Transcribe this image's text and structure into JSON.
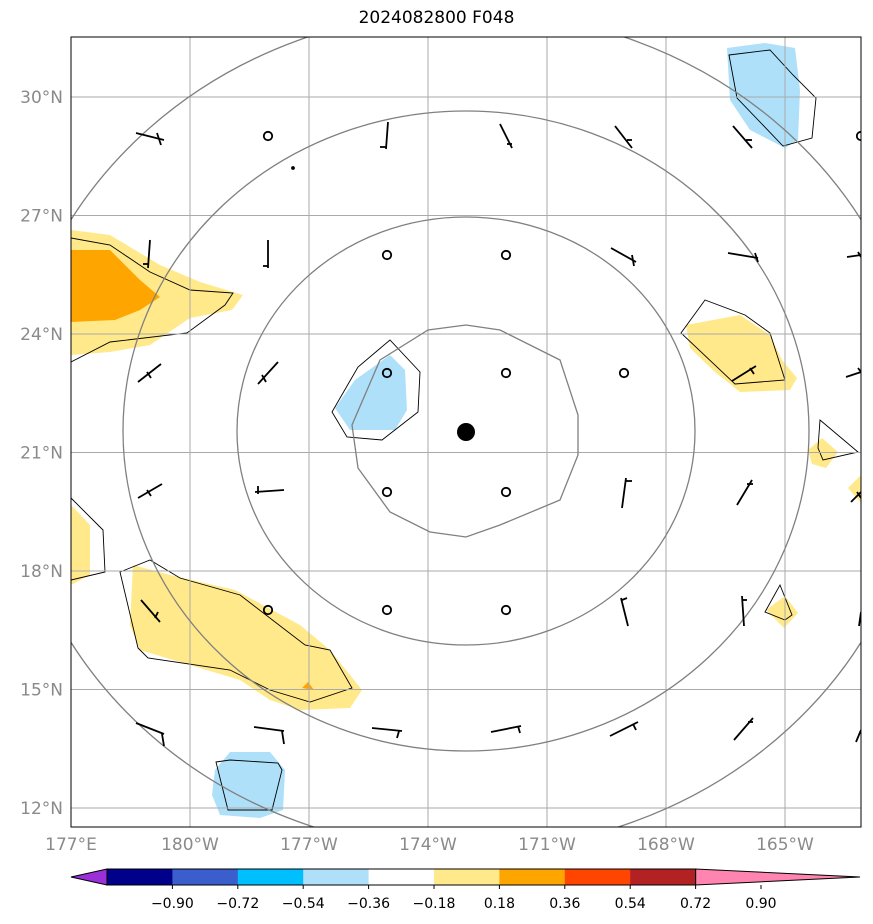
{
  "title": "2024082800 F048",
  "map": {
    "lon_range": [
      177,
      -163
    ],
    "lat_range": [
      11.5,
      31.5
    ],
    "lat_ticks": [
      {
        "value": 30,
        "label": "30°N"
      },
      {
        "value": 27,
        "label": "27°N"
      },
      {
        "value": 24,
        "label": "24°N"
      },
      {
        "value": 21,
        "label": "21°N"
      },
      {
        "value": 18,
        "label": "18°N"
      },
      {
        "value": 15,
        "label": "15°N"
      },
      {
        "value": 12,
        "label": "12°N"
      }
    ],
    "lon_ticks": [
      {
        "value": 177,
        "label": "177°E"
      },
      {
        "value": -180,
        "label": "180°W"
      },
      {
        "value": -177,
        "label": "177°W"
      },
      {
        "value": -174,
        "label": "174°W"
      },
      {
        "value": -171,
        "label": "171°W"
      },
      {
        "value": -168,
        "label": "168°W"
      },
      {
        "value": -165,
        "label": "165°W"
      }
    ],
    "grid": true,
    "center_marker": {
      "lon": -173.0,
      "lat": 21.5
    },
    "range_rings": "4 concentric gray rings around center",
    "shading_positive_color": "#ffe98a",
    "shading_strong_color": "#ffa500",
    "shading_negative_color": "#aee0fa"
  },
  "colorbar": {
    "labels": [
      "−0.90",
      "−0.72",
      "−0.54",
      "−0.36",
      "−0.18",
      "0.18",
      "0.36",
      "0.54",
      "0.72",
      "0.90"
    ],
    "colors": [
      "#9b30d9",
      "#00008b",
      "#3a5fcd",
      "#00bfff",
      "#aee0fa",
      "#ffffff",
      "#ffe98a",
      "#ffa500",
      "#ff4500",
      "#b22222",
      "#ff85b0"
    ]
  }
}
